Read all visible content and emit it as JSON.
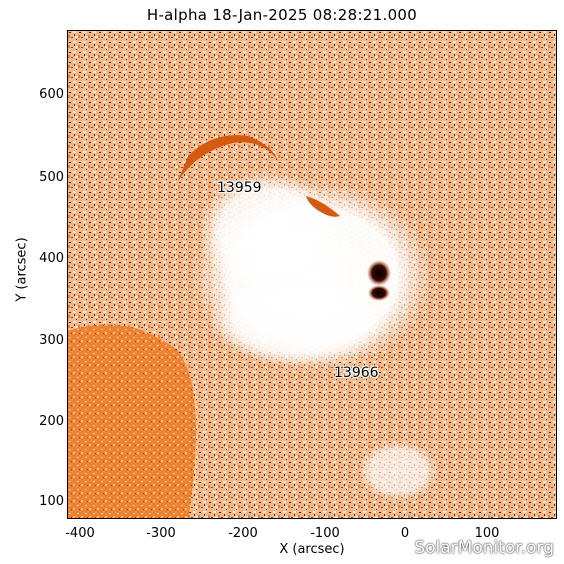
{
  "title": "H-alpha 18-Jan-2025 08:28:21.000",
  "axes": {
    "xlabel": "X (arcsec)",
    "ylabel": "Y (arcsec)",
    "x_ticks": [
      "-400",
      "-300",
      "-200",
      "-100",
      "0",
      "100"
    ],
    "y_ticks": [
      "600",
      "500",
      "400",
      "300",
      "200",
      "100"
    ]
  },
  "regions": [
    {
      "label": "13959"
    },
    {
      "label": "13966"
    }
  ],
  "watermark": "SolarMonitor.org",
  "colors": {
    "background_orange": "#e8752a",
    "plage_white": "#ffffff",
    "sunspot_dark": "#2a0600",
    "filament_orange": "#d45a10"
  }
}
